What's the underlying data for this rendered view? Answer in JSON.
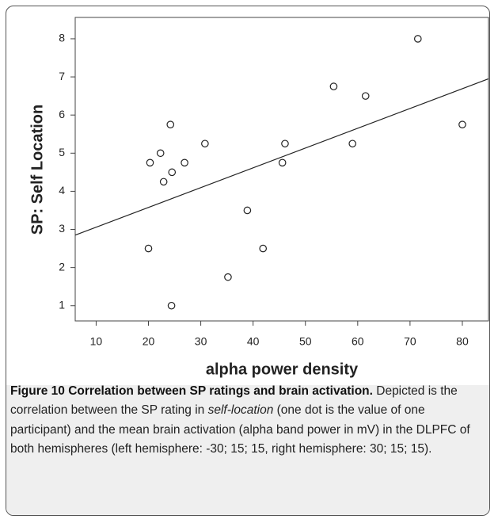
{
  "chart_data": {
    "type": "scatter",
    "xlabel": "alpha power density",
    "ylabel": "SP: Self Location",
    "x": [
      20.3,
      22.3,
      22.9,
      24.2,
      24.5,
      26.9,
      30.8,
      20,
      24.4,
      35.2,
      38.9,
      41.9,
      45.6,
      46.1,
      55.4,
      59,
      61.5,
      71.5,
      80
    ],
    "values": [
      4.75,
      5.0,
      4.25,
      5.75,
      4.5,
      4.75,
      5.25,
      2.5,
      1.0,
      1.75,
      3.5,
      2.5,
      4.75,
      5.25,
      6.75,
      5.25,
      6.5,
      8.0,
      5.75
    ],
    "color": "#222222",
    "fit_line": {
      "x": [
        6,
        85
      ],
      "y": [
        2.85,
        6.95
      ]
    },
    "xlim": [
      6,
      85
    ],
    "xticks": [
      10,
      20,
      30,
      40,
      50,
      60,
      70,
      80
    ],
    "ylim": [
      0.6,
      8.56
    ],
    "yticks": [
      1,
      2,
      3,
      4,
      5,
      6,
      7,
      8
    ]
  },
  "caption": {
    "title": "Figure 10 Correlation between SP ratings and brain activation.",
    "text_1": "Depicted is the correlation between the SP rating in",
    "italic": "self-location",
    "text_2": "(one dot is the value of one participant) and the mean brain activation (alpha band power in mV) in the DLPFC of both hemispheres (left hemisphere: -30; 15; 15, right hemisphere: 30; 15; 15)."
  }
}
